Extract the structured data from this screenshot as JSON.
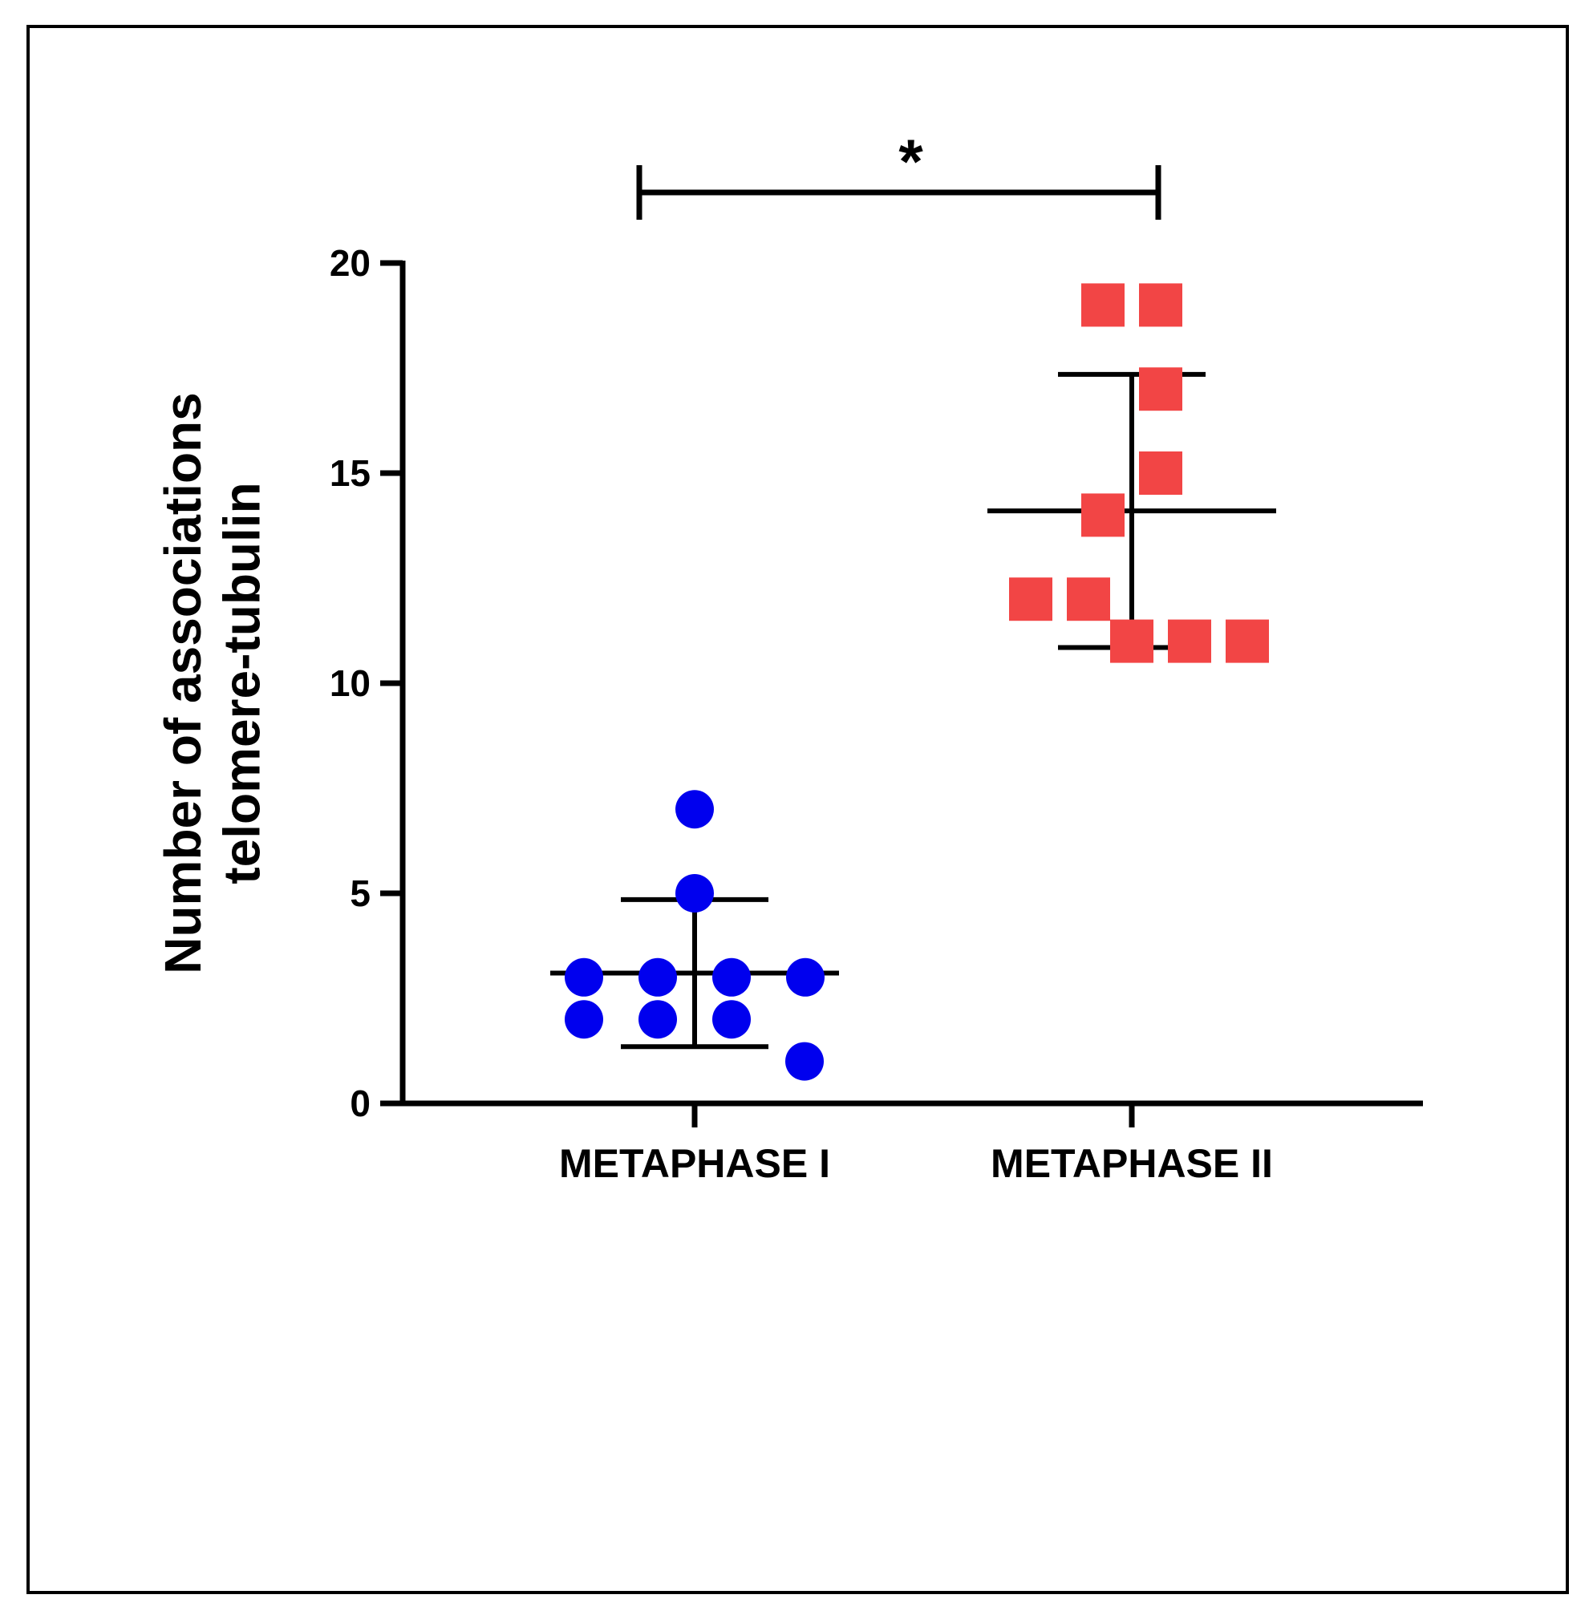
{
  "chart_data": {
    "type": "scatter",
    "ylabel_lines": [
      "Number of associations",
      "telomere-tubulin"
    ],
    "ylim": [
      0,
      20
    ],
    "yticks": [
      0,
      5,
      10,
      15,
      20
    ],
    "categories": [
      "METAPHASE I",
      "METAPHASE II"
    ],
    "significance": {
      "label": "*",
      "between": [
        "METAPHASE I",
        "METAPHASE II"
      ]
    },
    "series": [
      {
        "name": "METAPHASE I",
        "marker": "circle",
        "color": "#0000ee",
        "values": [
          7,
          5,
          3,
          3,
          3,
          3,
          2,
          2,
          2,
          1
        ],
        "mean": 3.1,
        "sd_upper": 4.85,
        "sd_lower": 1.35
      },
      {
        "name": "METAPHASE II",
        "marker": "square",
        "color": "#f24545",
        "values": [
          19,
          19,
          17,
          15,
          14,
          12,
          12,
          11,
          11,
          11
        ],
        "mean": 14.1,
        "sd_upper": 17.35,
        "sd_lower": 10.85
      }
    ]
  }
}
